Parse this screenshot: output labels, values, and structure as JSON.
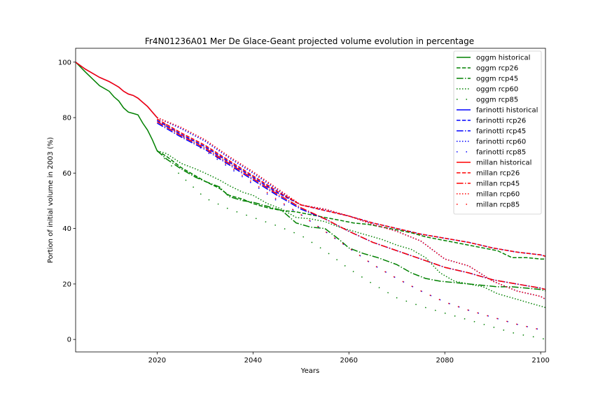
{
  "chart_data": {
    "type": "line",
    "title": "Fr4N01236A01 Mer De Glace-Geant projected volume evolution in percentage",
    "xlabel": "Years",
    "ylabel": "Portion of initial volume in 2003 (%)",
    "xlim": [
      2003,
      2101
    ],
    "ylim": [
      -4.5,
      105
    ],
    "xticks": [
      2020,
      2040,
      2060,
      2080,
      2100
    ],
    "yticks": [
      0,
      20,
      40,
      60,
      80,
      100
    ],
    "grid": false,
    "legend_position": "top-right",
    "series": [
      {
        "name": "oggm historical",
        "color": "#008000",
        "dash": "solid",
        "x": [
          2003,
          2005,
          2008,
          2010,
          2011,
          2012,
          2013,
          2014,
          2015,
          2016,
          2017,
          2018,
          2019,
          2020
        ],
        "y": [
          100,
          96.5,
          91.5,
          89.5,
          87.5,
          86,
          83.5,
          82,
          81.5,
          81,
          78,
          75.5,
          72,
          68
        ]
      },
      {
        "name": "oggm rcp26",
        "color": "#008000",
        "dash": "dashed",
        "x": [
          2020,
          2022,
          2025,
          2028,
          2030,
          2033,
          2035,
          2038,
          2040,
          2043,
          2046,
          2049,
          2052,
          2055,
          2058,
          2061,
          2064,
          2067,
          2070,
          2073,
          2076,
          2079,
          2082,
          2085,
          2088,
          2091,
          2094,
          2097,
          2100,
          2101
        ],
        "y": [
          68,
          66,
          62,
          59,
          57,
          54.5,
          52,
          50.5,
          49,
          47.5,
          46.5,
          46,
          45,
          44,
          43,
          42,
          41.5,
          40.5,
          39.5,
          38.5,
          37,
          36,
          35,
          34,
          33,
          32,
          29.5,
          29.5,
          29,
          29
        ]
      },
      {
        "name": "oggm rcp45",
        "color": "#008000",
        "dash": "dashdot",
        "x": [
          2020,
          2022,
          2025,
          2028,
          2030,
          2033,
          2035,
          2038,
          2040,
          2043,
          2046,
          2049,
          2052,
          2055,
          2058,
          2060,
          2063,
          2066,
          2070,
          2073,
          2076,
          2079,
          2082,
          2085,
          2088,
          2091,
          2094,
          2097,
          2100,
          2101
        ],
        "y": [
          68,
          65,
          61.5,
          58.5,
          57,
          55,
          51.5,
          50,
          49.5,
          48,
          46.5,
          42,
          40.5,
          40,
          36,
          33,
          31,
          29.5,
          27,
          24,
          22,
          21,
          20.5,
          20,
          19.5,
          19,
          19,
          18.5,
          18,
          17.5
        ]
      },
      {
        "name": "oggm rcp60",
        "color": "#008000",
        "dash": "dotted",
        "x": [
          2020,
          2022,
          2025,
          2028,
          2030,
          2033,
          2035,
          2038,
          2040,
          2043,
          2046,
          2049,
          2052,
          2055,
          2058,
          2061,
          2064,
          2067,
          2070,
          2073,
          2076,
          2079,
          2082,
          2085,
          2088,
          2091,
          2094,
          2097,
          2100,
          2101
        ],
        "y": [
          68,
          67,
          63.5,
          61.5,
          60,
          57.5,
          55.5,
          53,
          52,
          49,
          47,
          44,
          43.5,
          42.5,
          40.5,
          39,
          37.5,
          36,
          34,
          32.5,
          29.5,
          24,
          21,
          20,
          19,
          16.5,
          15,
          13.5,
          12,
          11.5
        ]
      },
      {
        "name": "oggm rcp85",
        "color": "#008000",
        "dash": "sparse",
        "x": [
          2020,
          2025,
          2030,
          2035,
          2040,
          2045,
          2050,
          2055,
          2060,
          2065,
          2070,
          2075,
          2080,
          2085,
          2090,
          2095,
          2100,
          2101
        ],
        "y": [
          68,
          59,
          51,
          47,
          44,
          41,
          37.5,
          32,
          25.5,
          20,
          15,
          12,
          9.5,
          7,
          4.5,
          2,
          0.5,
          0
        ]
      },
      {
        "name": "farinotti historical",
        "color": "#0000ff",
        "dash": "solid",
        "x": [
          2003,
          2005,
          2008,
          2010,
          2011,
          2012,
          2013,
          2014,
          2015,
          2016,
          2017,
          2018,
          2019,
          2020
        ],
        "y": [
          100,
          97.5,
          94.5,
          93,
          92,
          91,
          89.5,
          88.5,
          88,
          87,
          85.5,
          84,
          82,
          80
        ]
      },
      {
        "name": "farinotti rcp26",
        "color": "#0000ff",
        "dash": "dashed",
        "x": [
          2020,
          2025,
          2030,
          2035,
          2040,
          2045,
          2050,
          2055,
          2060,
          2065,
          2070,
          2075,
          2080,
          2085,
          2090,
          2095,
          2100,
          2101
        ],
        "y": [
          79,
          74,
          69.5,
          64,
          58.5,
          53,
          48.5,
          46.5,
          44.5,
          42,
          40,
          38,
          36.5,
          35,
          33,
          31.5,
          30.5,
          30
        ]
      },
      {
        "name": "farinotti rcp45",
        "color": "#0000ff",
        "dash": "dashdot",
        "x": [
          2020,
          2025,
          2030,
          2035,
          2040,
          2045,
          2050,
          2055,
          2060,
          2065,
          2070,
          2075,
          2080,
          2085,
          2090,
          2095,
          2100,
          2101
        ],
        "y": [
          78,
          73,
          68.5,
          63,
          57.5,
          52,
          47,
          43.5,
          39,
          35,
          32,
          29,
          26,
          24,
          21.5,
          20,
          18.5,
          18
        ]
      },
      {
        "name": "farinotti rcp60",
        "color": "#0000ff",
        "dash": "dotted",
        "x": [
          2020,
          2025,
          2030,
          2035,
          2040,
          2045,
          2050,
          2055,
          2060,
          2065,
          2070,
          2075,
          2080,
          2085,
          2090,
          2095,
          2100,
          2101
        ],
        "y": [
          80,
          76,
          71.5,
          65.5,
          60,
          54,
          48.5,
          47,
          44.5,
          41.5,
          39,
          35.5,
          29,
          26.5,
          21,
          17.5,
          15.5,
          14.5
        ]
      },
      {
        "name": "farinotti rcp85",
        "color": "#0000ff",
        "dash": "sparse",
        "x": [
          2020,
          2025,
          2030,
          2035,
          2040,
          2045,
          2050,
          2055,
          2060,
          2065,
          2070,
          2075,
          2080,
          2085,
          2090,
          2095,
          2100,
          2101
        ],
        "y": [
          79,
          73.5,
          68,
          62,
          56,
          50,
          45,
          39,
          33,
          27,
          22,
          17.5,
          13.5,
          10.5,
          8,
          5.5,
          3.5,
          3
        ]
      },
      {
        "name": "millan historical",
        "color": "#ff0000",
        "dash": "solid",
        "x": [
          2003,
          2005,
          2008,
          2010,
          2011,
          2012,
          2013,
          2014,
          2015,
          2016,
          2017,
          2018,
          2019,
          2020
        ],
        "y": [
          100,
          97.5,
          94.5,
          93,
          92,
          91,
          89.5,
          88.5,
          88,
          87,
          85.5,
          84,
          82,
          80
        ]
      },
      {
        "name": "millan rcp26",
        "color": "#ff0000",
        "dash": "dashed",
        "x": [
          2020,
          2025,
          2030,
          2035,
          2040,
          2045,
          2050,
          2055,
          2060,
          2065,
          2070,
          2075,
          2080,
          2085,
          2090,
          2095,
          2100,
          2101
        ],
        "y": [
          79.5,
          74.5,
          70,
          64.5,
          59,
          53.5,
          48.5,
          46.5,
          44.5,
          42,
          40,
          38,
          36.5,
          35,
          33,
          31.5,
          30.5,
          30
        ]
      },
      {
        "name": "millan rcp45",
        "color": "#ff0000",
        "dash": "dashdot",
        "x": [
          2020,
          2025,
          2030,
          2035,
          2040,
          2045,
          2050,
          2055,
          2060,
          2065,
          2070,
          2075,
          2080,
          2085,
          2090,
          2095,
          2100,
          2101
        ],
        "y": [
          78.5,
          73.5,
          69,
          63.5,
          58,
          52.5,
          47.5,
          43.5,
          39,
          35,
          32,
          29,
          26,
          24,
          21.5,
          20,
          18.5,
          18
        ]
      },
      {
        "name": "millan rcp60",
        "color": "#ff0000",
        "dash": "dotted",
        "x": [
          2020,
          2025,
          2030,
          2035,
          2040,
          2045,
          2050,
          2055,
          2060,
          2065,
          2070,
          2075,
          2080,
          2085,
          2090,
          2095,
          2100,
          2101
        ],
        "y": [
          80,
          76.5,
          72,
          66,
          60.5,
          54.5,
          48.5,
          47,
          44.5,
          41.5,
          39,
          35.5,
          29,
          26.5,
          21,
          17.5,
          15.5,
          14.5
        ]
      },
      {
        "name": "millan rcp85",
        "color": "#ff0000",
        "dash": "sparse",
        "x": [
          2020,
          2025,
          2030,
          2035,
          2040,
          2045,
          2050,
          2055,
          2060,
          2065,
          2070,
          2075,
          2080,
          2085,
          2090,
          2095,
          2100,
          2101
        ],
        "y": [
          79.5,
          74,
          68.5,
          62.5,
          56.5,
          50.5,
          45,
          39,
          33,
          27,
          22,
          17.5,
          13.5,
          10.5,
          8,
          5.5,
          3.5,
          3
        ]
      }
    ]
  }
}
